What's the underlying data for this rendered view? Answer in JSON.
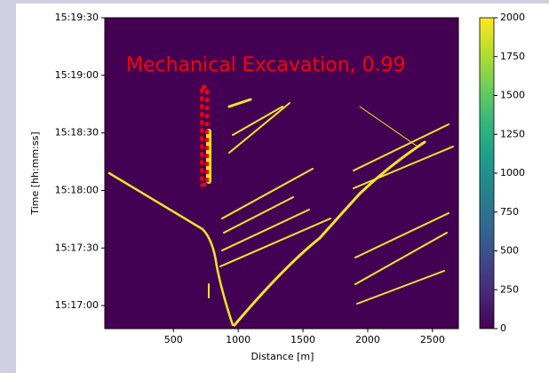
{
  "chart_data": {
    "type": "heatmap",
    "xlabel": "Distance [m]",
    "ylabel": "Time [hh:mm:ss]",
    "xlim": [
      -30,
      2700
    ],
    "xticks": [
      500,
      1000,
      1500,
      2000,
      2500
    ],
    "ylim": [
      55008,
      55170
    ],
    "yticks": [
      {
        "value": 55020,
        "label": "15:17:00"
      },
      {
        "value": 55050,
        "label": "15:17:30"
      },
      {
        "value": 55080,
        "label": "15:18:00"
      },
      {
        "value": 55110,
        "label": "15:18:30"
      },
      {
        "value": 55140,
        "label": "15:19:00"
      },
      {
        "value": 55170,
        "label": "15:19:30"
      }
    ],
    "colormap": "viridis",
    "clim": [
      0,
      2000
    ],
    "cticks": [
      0,
      250,
      500,
      750,
      1000,
      1250,
      1500,
      1750,
      2000
    ],
    "annotation": "Mechanical Excavation, 0.99",
    "detection_box": {
      "x": [
        720,
        980
      ],
      "y": [
        55083,
        55134
      ],
      "color": "#ff0000"
    }
  }
}
